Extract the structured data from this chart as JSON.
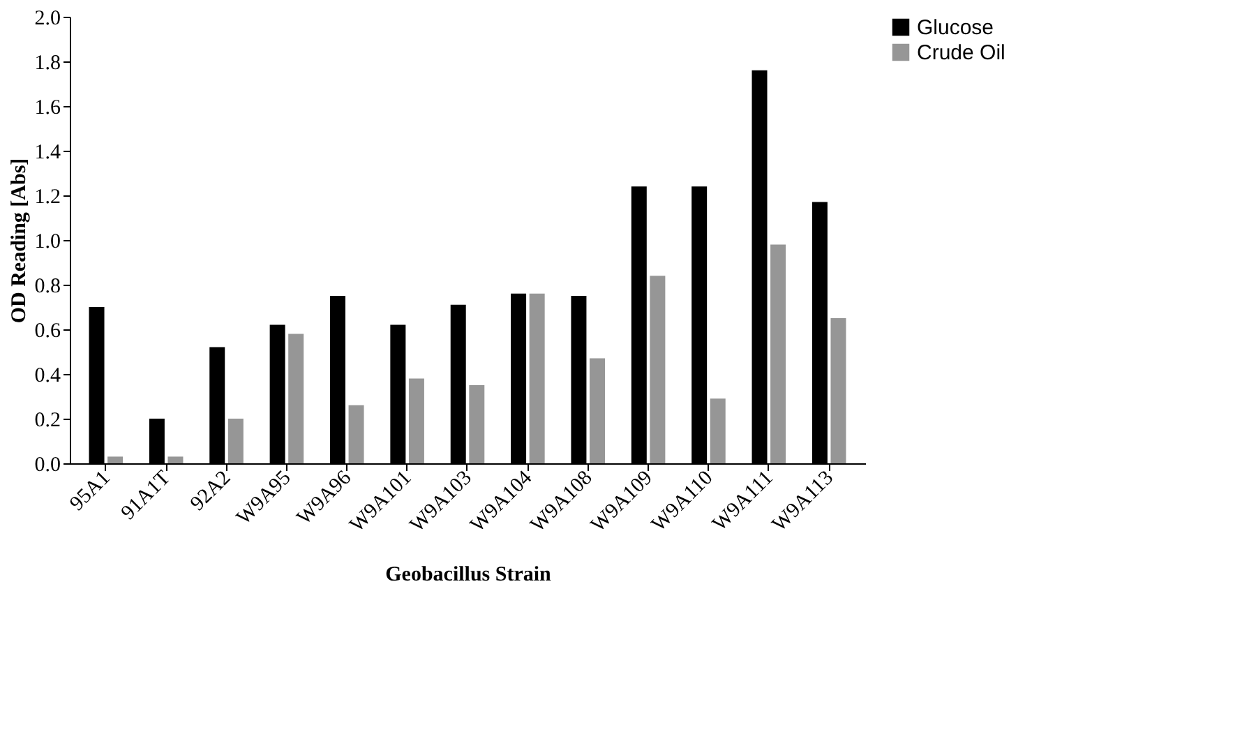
{
  "chart_data": {
    "type": "bar",
    "xlabel": "Geobacillus Strain",
    "ylabel": "OD Reading [Abs]",
    "categories": [
      "95A1",
      "91A1T",
      "92A2",
      "W9A95",
      "W9A96",
      "W9A101",
      "W9A103",
      "W9A104",
      "W9A108",
      "W9A109",
      "W9A110",
      "W9A111",
      "W9A113"
    ],
    "series": [
      {
        "name": "Glucose",
        "color": "#000000",
        "values": [
          0.7,
          0.2,
          0.52,
          0.62,
          0.75,
          0.62,
          0.71,
          0.76,
          0.75,
          1.24,
          1.24,
          1.76,
          1.17
        ]
      },
      {
        "name": "Crude Oil",
        "color": "#969696",
        "values": [
          0.03,
          0.03,
          0.2,
          0.58,
          0.26,
          0.38,
          0.35,
          0.76,
          0.47,
          0.84,
          0.29,
          0.98,
          0.65
        ]
      }
    ],
    "ylim": [
      0,
      2.0
    ],
    "yticks": [
      {
        "value": 0,
        "label": "0.0"
      },
      {
        "value": 0.2,
        "label": "0.2"
      },
      {
        "value": 0.4,
        "label": "0.4"
      },
      {
        "value": 0.6,
        "label": "0.6"
      },
      {
        "value": 0.8,
        "label": "0.8"
      },
      {
        "value": 1.0,
        "label": "1.0"
      },
      {
        "value": 1.2,
        "label": "1.2"
      },
      {
        "value": 1.4,
        "label": "1.4"
      },
      {
        "value": 1.6,
        "label": "1.6"
      },
      {
        "value": 1.8,
        "label": "1.8"
      },
      {
        "value": 2.0,
        "label": "2.0"
      }
    ],
    "grid": false,
    "legend": "right"
  }
}
